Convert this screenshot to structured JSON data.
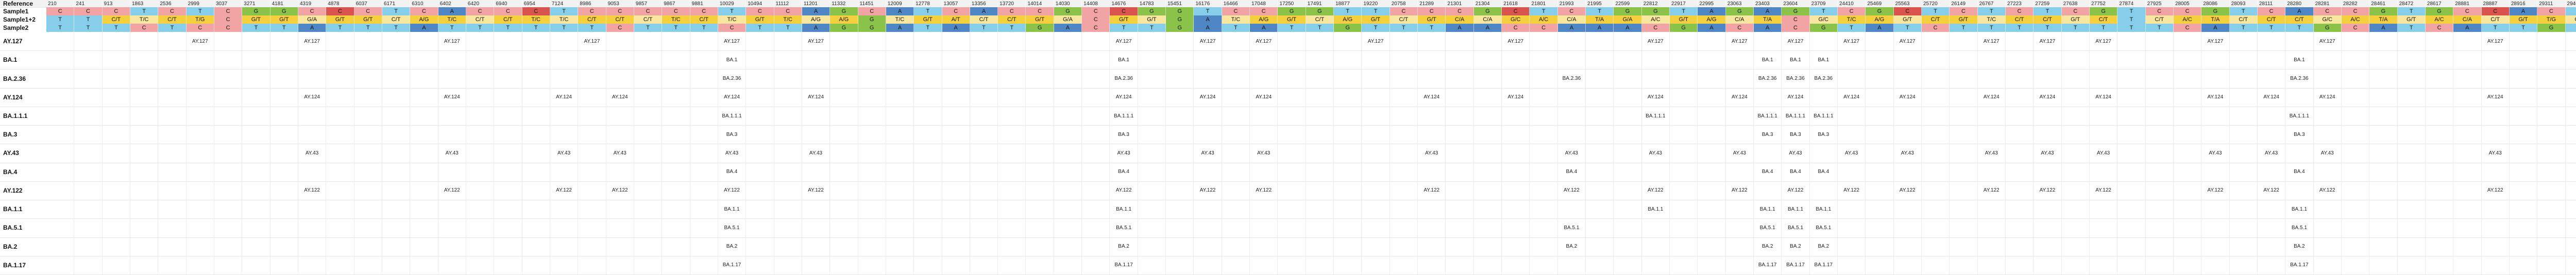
{
  "header": {
    "label": "Reference",
    "positions": [
      "210",
      "241",
      "913",
      "1863",
      "2536",
      "2999",
      "3037",
      "3271",
      "4181",
      "4319",
      "4878",
      "6037",
      "6171",
      "6310",
      "6402",
      "6420",
      "6940",
      "6954",
      "7124",
      "8986",
      "9053",
      "9857",
      "9867",
      "9881",
      "10029",
      "10494",
      "11112",
      "11201",
      "11332",
      "11451",
      "12009",
      "12778",
      "13057",
      "13356",
      "13720",
      "14014",
      "14030",
      "14408",
      "14676",
      "14783",
      "15451",
      "16176",
      "16466",
      "17048",
      "17250",
      "17491",
      "18877",
      "19220",
      "20758",
      "21289",
      "21301",
      "21304",
      "21618",
      "21801",
      "21993",
      "21995",
      "22599",
      "22812",
      "22917",
      "22995",
      "23063",
      "23403",
      "23604",
      "23709",
      "24410",
      "25469",
      "25563",
      "25720",
      "26149",
      "26767",
      "27223",
      "27259",
      "27638",
      "27752",
      "27874",
      "27925",
      "28005",
      "28086",
      "28093",
      "28111",
      "28280",
      "28281",
      "28282",
      "28461",
      "28472",
      "28617",
      "28881",
      "28887",
      "28916",
      "29311",
      "29402",
      "29742"
    ]
  },
  "rows": [
    {
      "label": "Sample1",
      "cells": [
        "C",
        "C",
        "C",
        "T",
        "C",
        "T",
        "C",
        "G",
        "G",
        "C",
        "C",
        "C",
        "T",
        "C",
        "A",
        "C",
        "C",
        "C",
        "T",
        "C",
        "C",
        "C",
        "C",
        "C",
        "T",
        "C",
        "C",
        "A",
        "G",
        "C",
        "A",
        "T",
        "C",
        "A",
        "C",
        "C",
        "G",
        "C",
        "C",
        "G",
        "G",
        "T",
        "C",
        "C",
        "G",
        "G",
        "T",
        "T",
        "C",
        "C",
        "C",
        "G",
        "C",
        "T",
        "C",
        "T",
        "G",
        "G",
        "T",
        "A",
        "G",
        "A",
        "G",
        "T",
        "C",
        "G",
        "C",
        "T",
        "C",
        "T",
        "C",
        "T",
        "C",
        "G",
        "T",
        "C",
        "C",
        "G",
        "T",
        "C",
        "A",
        "C",
        "C",
        "G",
        "T",
        "G",
        "C",
        "C",
        "A",
        "C",
        "T",
        "C",
        "T"
      ]
    },
    {
      "label": "Sample1+2",
      "cells": [
        "T",
        "T",
        "C/T",
        "T/C",
        "C/T",
        "T/G",
        "C",
        "G/T",
        "G/T",
        "G/A",
        "G/T",
        "G/T",
        "C/T",
        "A/G",
        "T/C",
        "C/T",
        "C/T",
        "T/C",
        "T/C",
        "C/T",
        "C/T",
        "C/T",
        "T/C",
        "C/T",
        "T/C",
        "G/T",
        "T/C",
        "A/G",
        "A/G",
        "G",
        "T/C",
        "G/T",
        "A/T",
        "C/T",
        "C/T",
        "G/T",
        "G/A",
        "C",
        "G/T",
        "G/T",
        "G",
        "A",
        "T/C",
        "A/G",
        "G/T",
        "C/T",
        "A/G",
        "G/T",
        "C/T",
        "G/T",
        "C/A",
        "C/A",
        "G/C",
        "A/C",
        "C/A",
        "T/A",
        "G/A",
        "A/C",
        "G/T",
        "A/G",
        "C/A",
        "T/A",
        "C",
        "G/C",
        "T/C",
        "A/G",
        "G/T",
        "C/T",
        "G/T",
        "T/C",
        "C/T",
        "C/T",
        "G/T",
        "C/T",
        "T",
        "C/T",
        "A/C",
        "T/A",
        "C/T",
        "C/T",
        "C/T",
        "G/C",
        "A/C",
        "T/A",
        "G/T",
        "A/C",
        "C/A",
        "C/T",
        "G/T",
        "T/G",
        "C/T",
        "T/C",
        "T"
      ]
    },
    {
      "label": "Sample2",
      "cells": [
        "T",
        "T",
        "T",
        "C",
        "T",
        "C",
        "C",
        "T",
        "T",
        "A",
        "T",
        "T",
        "T",
        "A",
        "T",
        "T",
        "T",
        "T",
        "T",
        "T",
        "C",
        "T",
        "T",
        "T",
        "C",
        "T",
        "T",
        "A",
        "G",
        "G",
        "A",
        "T",
        "A",
        "T",
        "T",
        "G",
        "A",
        "C",
        "T",
        "T",
        "G",
        "A",
        "T",
        "A",
        "T",
        "T",
        "G",
        "T",
        "T",
        "T",
        "A",
        "A",
        "C",
        "C",
        "A",
        "A",
        "A",
        "C",
        "G",
        "A",
        "C",
        "A",
        "C",
        "G",
        "T",
        "A",
        "T",
        "C",
        "T",
        "T",
        "T",
        "T",
        "T",
        "T",
        "T",
        "T",
        "C",
        "A",
        "T",
        "T",
        "T",
        "G",
        "C",
        "A",
        "T",
        "C",
        "A",
        "T",
        "T",
        "G",
        "T",
        "T",
        "T"
      ]
    }
  ],
  "lineages": [
    {
      "label": "AY.127",
      "marks": [
        {
          "c": 5,
          "t": "AY.127"
        },
        {
          "c": 9,
          "t": "AY.127"
        },
        {
          "c": 14,
          "t": "AY.127"
        },
        {
          "c": 19,
          "t": "AY.127"
        },
        {
          "c": 24,
          "t": "AY.127"
        },
        {
          "c": 27,
          "t": "AY.127"
        },
        {
          "c": 38,
          "t": "AY.127"
        },
        {
          "c": 41,
          "t": "AY.127"
        },
        {
          "c": 43,
          "t": "AY.127"
        },
        {
          "c": 47,
          "t": "AY.127"
        },
        {
          "c": 52,
          "t": "AY.127"
        },
        {
          "c": 57,
          "t": "AY.127"
        },
        {
          "c": 60,
          "t": "AY.127"
        },
        {
          "c": 62,
          "t": "AY.127"
        },
        {
          "c": 64,
          "t": "AY.127"
        },
        {
          "c": 66,
          "t": "AY.127"
        },
        {
          "c": 69,
          "t": "AY.127"
        },
        {
          "c": 71,
          "t": "AY.127"
        },
        {
          "c": 73,
          "t": "AY.127"
        },
        {
          "c": 77,
          "t": "AY.127"
        },
        {
          "c": 81,
          "t": "AY.127"
        },
        {
          "c": 87,
          "t": "AY.127"
        }
      ]
    },
    {
      "label": "BA.1",
      "marks": [
        {
          "c": 24,
          "t": "BA.1"
        },
        {
          "c": 38,
          "t": "BA.1"
        },
        {
          "c": 61,
          "t": "BA.1"
        },
        {
          "c": 62,
          "t": "BA.1"
        },
        {
          "c": 63,
          "t": "BA.1"
        },
        {
          "c": 80,
          "t": "BA.1"
        }
      ]
    },
    {
      "label": "BA.2.36",
      "marks": [
        {
          "c": 24,
          "t": "BA.2.36"
        },
        {
          "c": 38,
          "t": "BA.2.36"
        },
        {
          "c": 54,
          "t": "BA.2.36"
        },
        {
          "c": 61,
          "t": "BA.2.36"
        },
        {
          "c": 62,
          "t": "BA.2.36"
        },
        {
          "c": 63,
          "t": "BA.2.36"
        },
        {
          "c": 80,
          "t": "BA.2.36"
        }
      ]
    },
    {
      "label": "AY.124",
      "marks": [
        {
          "c": 9,
          "t": "AY.124"
        },
        {
          "c": 14,
          "t": "AY.124"
        },
        {
          "c": 18,
          "t": "AY.124"
        },
        {
          "c": 20,
          "t": "AY.124"
        },
        {
          "c": 24,
          "t": "AY.124"
        },
        {
          "c": 27,
          "t": "AY.124"
        },
        {
          "c": 38,
          "t": "AY.124"
        },
        {
          "c": 41,
          "t": "AY.124"
        },
        {
          "c": 43,
          "t": "AY.124"
        },
        {
          "c": 49,
          "t": "AY.124"
        },
        {
          "c": 52,
          "t": "AY.124"
        },
        {
          "c": 57,
          "t": "AY.124"
        },
        {
          "c": 60,
          "t": "AY.124"
        },
        {
          "c": 62,
          "t": "AY.124"
        },
        {
          "c": 64,
          "t": "AY.124"
        },
        {
          "c": 66,
          "t": "AY.124"
        },
        {
          "c": 69,
          "t": "AY.124"
        },
        {
          "c": 71,
          "t": "AY.124"
        },
        {
          "c": 73,
          "t": "AY.124"
        },
        {
          "c": 77,
          "t": "AY.124"
        },
        {
          "c": 79,
          "t": "AY.124"
        },
        {
          "c": 81,
          "t": "AY.124"
        },
        {
          "c": 87,
          "t": "AY.124"
        }
      ]
    },
    {
      "label": "BA.1.1.1",
      "marks": [
        {
          "c": 24,
          "t": "BA.1.1.1"
        },
        {
          "c": 38,
          "t": "BA.1.1.1"
        },
        {
          "c": 57,
          "t": "BA.1.1.1"
        },
        {
          "c": 61,
          "t": "BA.1.1.1"
        },
        {
          "c": 62,
          "t": "BA.1.1.1"
        },
        {
          "c": 63,
          "t": "BA.1.1.1"
        },
        {
          "c": 80,
          "t": "BA.1.1.1"
        }
      ]
    },
    {
      "label": "BA.3",
      "marks": [
        {
          "c": 24,
          "t": "BA.3"
        },
        {
          "c": 38,
          "t": "BA.3"
        },
        {
          "c": 61,
          "t": "BA.3"
        },
        {
          "c": 62,
          "t": "BA.3"
        },
        {
          "c": 63,
          "t": "BA.3"
        },
        {
          "c": 80,
          "t": "BA.3"
        }
      ]
    },
    {
      "label": "AY.43",
      "marks": [
        {
          "c": 9,
          "t": "AY.43"
        },
        {
          "c": 14,
          "t": "AY.43"
        },
        {
          "c": 18,
          "t": "AY.43"
        },
        {
          "c": 20,
          "t": "AY.43"
        },
        {
          "c": 24,
          "t": "AY.43"
        },
        {
          "c": 27,
          "t": "AY.43"
        },
        {
          "c": 38,
          "t": "AY.43"
        },
        {
          "c": 41,
          "t": "AY.43"
        },
        {
          "c": 43,
          "t": "AY.43"
        },
        {
          "c": 49,
          "t": "AY.43"
        },
        {
          "c": 54,
          "t": "AY.43"
        },
        {
          "c": 57,
          "t": "AY.43"
        },
        {
          "c": 60,
          "t": "AY.43"
        },
        {
          "c": 62,
          "t": "AY.43"
        },
        {
          "c": 64,
          "t": "AY.43"
        },
        {
          "c": 66,
          "t": "AY.43"
        },
        {
          "c": 69,
          "t": "AY.43"
        },
        {
          "c": 71,
          "t": "AY.43"
        },
        {
          "c": 73,
          "t": "AY.43"
        },
        {
          "c": 77,
          "t": "AY.43"
        },
        {
          "c": 79,
          "t": "AY.43"
        },
        {
          "c": 81,
          "t": "AY.43"
        },
        {
          "c": 87,
          "t": "AY.43"
        }
      ]
    },
    {
      "label": "BA.4",
      "marks": [
        {
          "c": 24,
          "t": "BA.4"
        },
        {
          "c": 38,
          "t": "BA.4"
        },
        {
          "c": 54,
          "t": "BA.4"
        },
        {
          "c": 61,
          "t": "BA.4"
        },
        {
          "c": 62,
          "t": "BA.4"
        },
        {
          "c": 63,
          "t": "BA.4"
        },
        {
          "c": 80,
          "t": "BA.4"
        }
      ]
    },
    {
      "label": "AY.122",
      "marks": [
        {
          "c": 9,
          "t": "AY.122"
        },
        {
          "c": 14,
          "t": "AY.122"
        },
        {
          "c": 18,
          "t": "AY.122"
        },
        {
          "c": 20,
          "t": "AY.122"
        },
        {
          "c": 24,
          "t": "AY.122"
        },
        {
          "c": 27,
          "t": "AY.122"
        },
        {
          "c": 38,
          "t": "AY.122"
        },
        {
          "c": 41,
          "t": "AY.122"
        },
        {
          "c": 43,
          "t": "AY.122"
        },
        {
          "c": 49,
          "t": "AY.122"
        },
        {
          "c": 54,
          "t": "AY.122"
        },
        {
          "c": 57,
          "t": "AY.122"
        },
        {
          "c": 60,
          "t": "AY.122"
        },
        {
          "c": 62,
          "t": "AY.122"
        },
        {
          "c": 64,
          "t": "AY.122"
        },
        {
          "c": 66,
          "t": "AY.122"
        },
        {
          "c": 69,
          "t": "AY.122"
        },
        {
          "c": 71,
          "t": "AY.122"
        },
        {
          "c": 73,
          "t": "AY.122"
        },
        {
          "c": 77,
          "t": "AY.122"
        },
        {
          "c": 79,
          "t": "AY.122"
        },
        {
          "c": 81,
          "t": "AY.122"
        },
        {
          "c": 87,
          "t": "AY.122"
        }
      ]
    },
    {
      "label": "BA.1.1",
      "marks": [
        {
          "c": 24,
          "t": "BA.1.1"
        },
        {
          "c": 38,
          "t": "BA.1.1"
        },
        {
          "c": 57,
          "t": "BA.1.1"
        },
        {
          "c": 61,
          "t": "BA.1.1"
        },
        {
          "c": 62,
          "t": "BA.1.1"
        },
        {
          "c": 63,
          "t": "BA.1.1"
        },
        {
          "c": 80,
          "t": "BA.1.1"
        }
      ]
    },
    {
      "label": "BA.5.1",
      "marks": [
        {
          "c": 24,
          "t": "BA.5.1"
        },
        {
          "c": 38,
          "t": "BA.5.1"
        },
        {
          "c": 54,
          "t": "BA.5.1"
        },
        {
          "c": 61,
          "t": "BA.5.1"
        },
        {
          "c": 62,
          "t": "BA.5.1"
        },
        {
          "c": 63,
          "t": "BA.5.1"
        },
        {
          "c": 80,
          "t": "BA.5.1"
        }
      ]
    },
    {
      "label": "BA.2",
      "marks": [
        {
          "c": 24,
          "t": "BA.2"
        },
        {
          "c": 38,
          "t": "BA.2"
        },
        {
          "c": 54,
          "t": "BA.2"
        },
        {
          "c": 61,
          "t": "BA.2"
        },
        {
          "c": 62,
          "t": "BA.2"
        },
        {
          "c": 63,
          "t": "BA.2"
        },
        {
          "c": 80,
          "t": "BA.2"
        }
      ]
    },
    {
      "label": "BA.1.17",
      "marks": [
        {
          "c": 24,
          "t": "BA.1.17"
        },
        {
          "c": 38,
          "t": "BA.1.17"
        },
        {
          "c": 61,
          "t": "BA.1.17"
        },
        {
          "c": 62,
          "t": "BA.1.17"
        },
        {
          "c": 63,
          "t": "BA.1.17"
        },
        {
          "c": 80,
          "t": "BA.1.17"
        }
      ]
    }
  ],
  "colors": {
    "A": "#4f86c6",
    "C": "#f2a3a3",
    "G": "#8bc34a",
    "T": "#87ceeb",
    "mixed": "#f4d03f",
    "mixed_alt": "#f9e79f",
    "ref": "#c9a0a0",
    "dark_red": "#d9534f"
  }
}
